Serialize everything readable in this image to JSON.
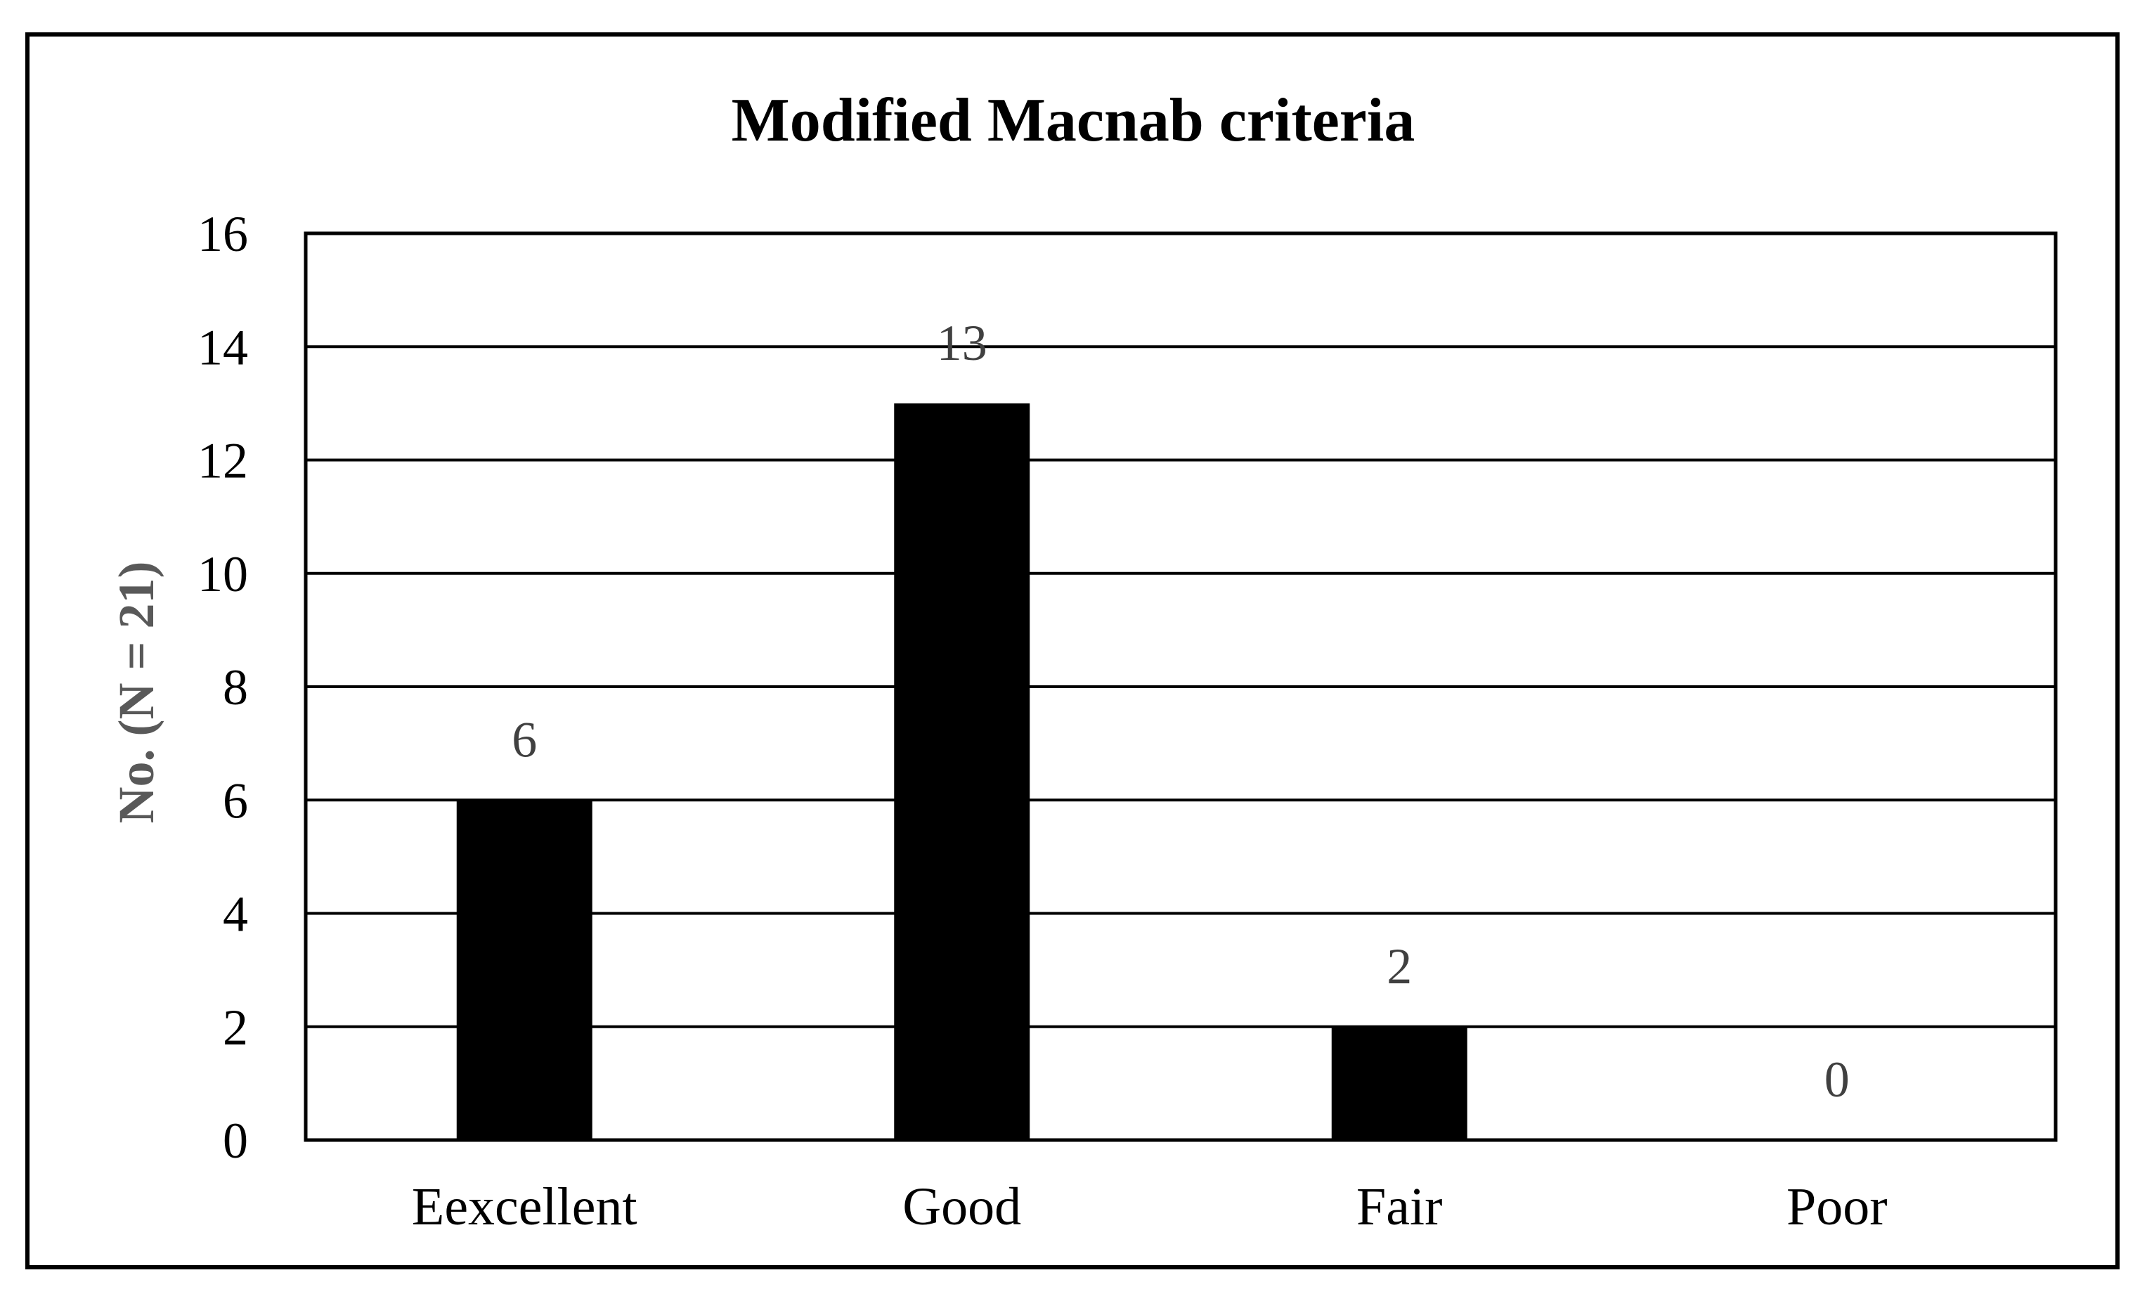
{
  "chart_data": {
    "type": "bar",
    "title": "Modified Macnab criteria",
    "xlabel": "",
    "ylabel": "No. (N = 21)",
    "categories": [
      "Eexcellent",
      "Good",
      "Fair",
      "Poor"
    ],
    "values": [
      6,
      13,
      2,
      0
    ],
    "data_labels": [
      "6",
      "13",
      "2",
      "0"
    ],
    "ylim": [
      0,
      16
    ],
    "yticks": [
      0,
      2,
      4,
      6,
      8,
      10,
      12,
      14,
      16
    ],
    "grid": "horizontal",
    "legend": "none",
    "colors": {
      "bar": "#000000",
      "grid": "#000000",
      "axis_label": "#595959",
      "data_label": "#404040"
    }
  }
}
